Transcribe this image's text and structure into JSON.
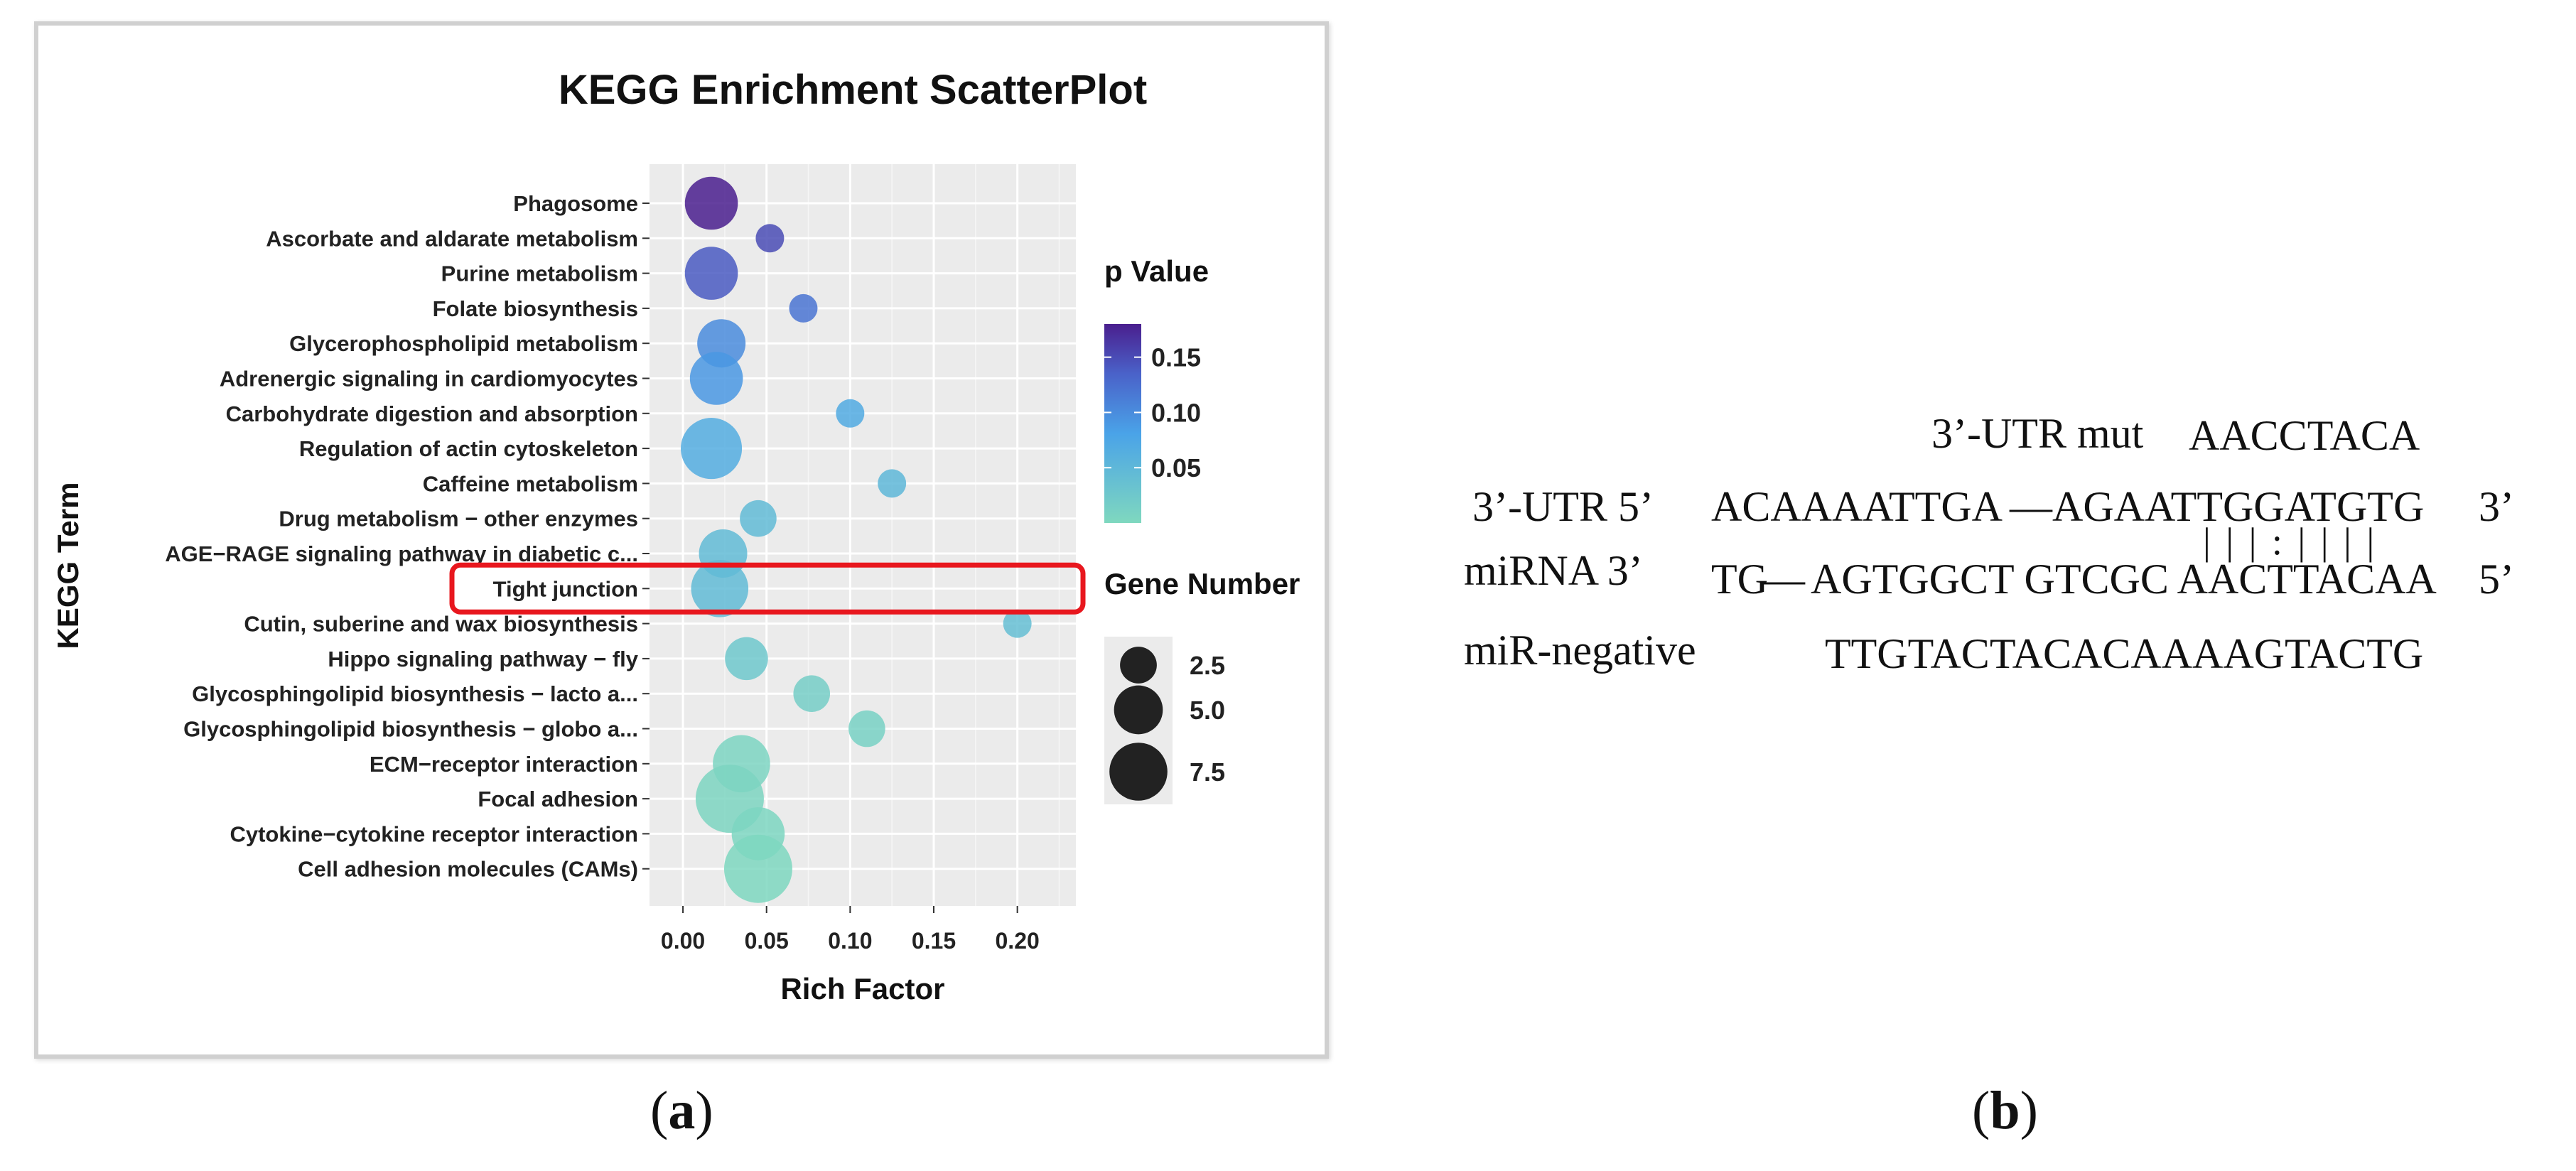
{
  "chart_data": {
    "type": "scatter",
    "title": "KEGG Enrichment ScatterPlot",
    "xlabel": "Rich Factor",
    "ylabel": "KEGG Term",
    "xlim": [
      -0.02,
      0.235
    ],
    "x_ticks": [
      0.0,
      0.05,
      0.1,
      0.15,
      0.2
    ],
    "x_tick_labels": [
      "0.00",
      "0.05",
      "0.10",
      "0.15",
      "0.20"
    ],
    "grid": true,
    "legend_position": "right",
    "color_legend": {
      "title": "p Value",
      "ticks": [
        "0.15",
        "0.10",
        "0.05"
      ],
      "tick_values": [
        0.15,
        0.1,
        0.05
      ],
      "range": [
        0.0,
        0.18
      ],
      "low_color": "#7fd8bf",
      "mid_color": "#4aa3e8",
      "high_color": "#4a1f8e"
    },
    "size_legend": {
      "title": "Gene Number",
      "entries": [
        "2.5",
        "5.0",
        "7.5"
      ],
      "values": [
        2.5,
        5.0,
        7.5
      ]
    },
    "points": [
      {
        "term": "Phagosome",
        "x": 0.017,
        "p": 0.18,
        "genes": 5
      },
      {
        "term": "Ascorbate and aldarate metabolism",
        "x": 0.052,
        "p": 0.15,
        "genes": 1
      },
      {
        "term": "Purine metabolism",
        "x": 0.017,
        "p": 0.14,
        "genes": 5
      },
      {
        "term": "Folate biosynthesis",
        "x": 0.072,
        "p": 0.12,
        "genes": 1
      },
      {
        "term": "Glycerophospholipid metabolism",
        "x": 0.023,
        "p": 0.1,
        "genes": 4
      },
      {
        "term": "Adrenergic signaling in cardiomyocytes",
        "x": 0.02,
        "p": 0.09,
        "genes": 5
      },
      {
        "term": "Carbohydrate digestion and absorption",
        "x": 0.1,
        "p": 0.07,
        "genes": 1
      },
      {
        "term": "Regulation of actin cytoskeleton",
        "x": 0.017,
        "p": 0.065,
        "genes": 7
      },
      {
        "term": "Caffeine metabolism",
        "x": 0.125,
        "p": 0.05,
        "genes": 1
      },
      {
        "term": "Drug metabolism − other enzymes",
        "x": 0.045,
        "p": 0.045,
        "genes": 2
      },
      {
        "term": "AGE−RAGE signaling pathway in diabetic c...",
        "x": 0.024,
        "p": 0.045,
        "genes": 4
      },
      {
        "term": "Tight junction",
        "x": 0.022,
        "p": 0.045,
        "genes": 6
      },
      {
        "term": "Cutin, suberine and wax biosynthesis",
        "x": 0.2,
        "p": 0.04,
        "genes": 1
      },
      {
        "term": "Hippo signaling pathway − fly",
        "x": 0.038,
        "p": 0.025,
        "genes": 3
      },
      {
        "term": "Glycosphingolipid biosynthesis − lacto a...",
        "x": 0.077,
        "p": 0.015,
        "genes": 2
      },
      {
        "term": "Glycosphingolipid biosynthesis − globo a...",
        "x": 0.11,
        "p": 0.01,
        "genes": 2
      },
      {
        "term": "ECM−receptor interaction",
        "x": 0.035,
        "p": 0.005,
        "genes": 6
      },
      {
        "term": "Focal adhesion",
        "x": 0.028,
        "p": 0.004,
        "genes": 9
      },
      {
        "term": "Cytokine−cytokine receptor interaction",
        "x": 0.045,
        "p": 0.003,
        "genes": 5
      },
      {
        "term": "Cell adhesion molecules (CAMs)",
        "x": 0.045,
        "p": 0.002,
        "genes": 9
      }
    ],
    "highlight_term": "Tight junction",
    "highlight_color": "#e8171e"
  },
  "captions": {
    "a": "a",
    "b": "b"
  },
  "sequences": {
    "mut_label": "3’-UTR mut",
    "mut_seq": "AACCTACA",
    "utr_label": "3’-UTR 5’",
    "utr_seq_1": "ACAAAATTGA",
    "utr_dash": "—",
    "utr_seq_2": "AGAATTGGATGTG",
    "utr_end": "3’",
    "pairing": "| | | : | | | |",
    "mirna_label": "miRNA 3’",
    "mirna_seq_1": "TG",
    "mirna_dash": "—",
    "mirna_seq_2": "AGTGGCT GTCGC AACTTACAA",
    "mirna_end": "5’",
    "neg_label": "miR-negative",
    "neg_seq": "TTGTACTACACAAAAGTACTG"
  }
}
